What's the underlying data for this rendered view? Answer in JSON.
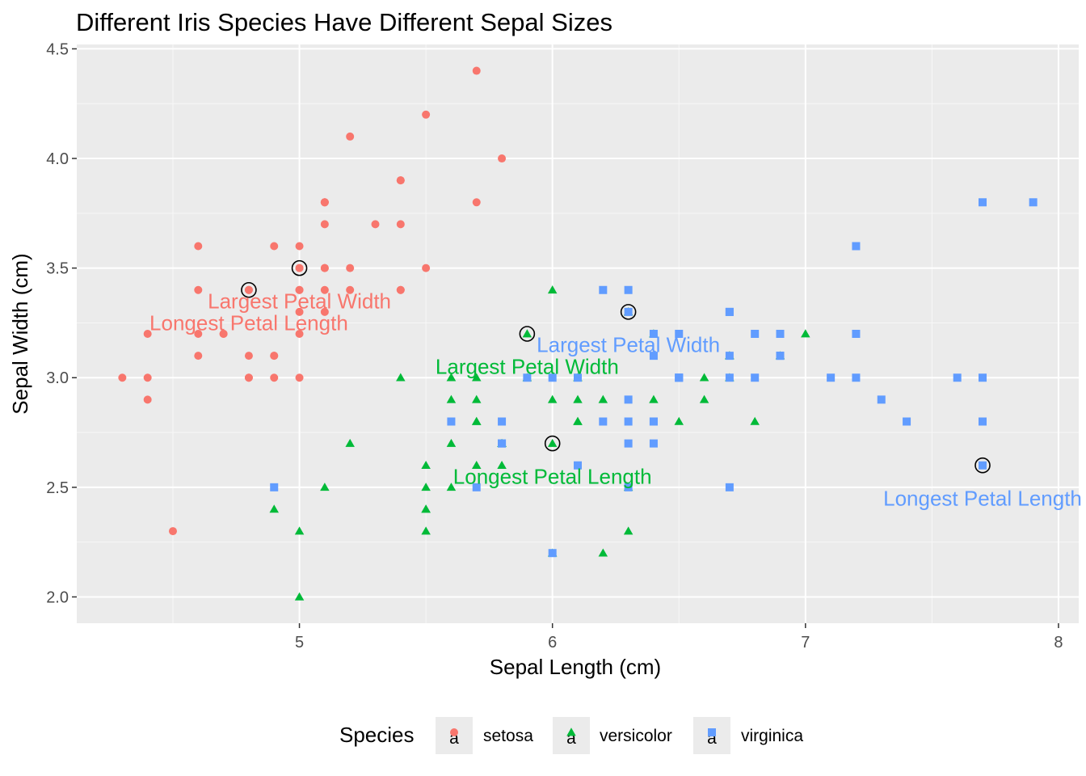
{
  "chart_data": {
    "type": "scatter",
    "title": "Different Iris Species Have Different Sepal Sizes",
    "xlabel": "Sepal Length (cm)",
    "ylabel": "Sepal Width (cm)",
    "xlim": [
      4.12,
      8.08
    ],
    "ylim": [
      1.88,
      4.52
    ],
    "x_ticks": [
      5,
      6,
      7,
      8
    ],
    "x_tick_labels": [
      "5",
      "6",
      "7",
      "8"
    ],
    "y_ticks": [
      2.0,
      2.5,
      3.0,
      3.5,
      4.0,
      4.5
    ],
    "y_tick_labels": [
      "2.0",
      "2.5",
      "3.0",
      "3.5",
      "4.0",
      "4.5"
    ],
    "grid": true,
    "legend": {
      "title": "Species",
      "position": "bottom",
      "entries": [
        {
          "label": "setosa",
          "color": "#F8766D",
          "shape": "circle"
        },
        {
          "label": "versicolor",
          "color": "#00BA38",
          "shape": "triangle"
        },
        {
          "label": "virginica",
          "color": "#619CFF",
          "shape": "square"
        }
      ]
    },
    "series": [
      {
        "name": "setosa",
        "color": "#F8766D",
        "shape": "circle",
        "x": [
          5.1,
          4.9,
          4.7,
          4.6,
          5.0,
          5.4,
          4.6,
          5.0,
          4.4,
          4.9,
          5.4,
          4.8,
          4.8,
          4.3,
          5.8,
          5.7,
          5.4,
          5.1,
          5.7,
          5.1,
          5.4,
          5.1,
          4.6,
          5.1,
          4.8,
          5.0,
          5.0,
          5.2,
          5.2,
          4.7,
          4.8,
          5.4,
          5.2,
          5.5,
          4.9,
          5.0,
          5.5,
          4.9,
          4.4,
          5.1,
          5.0,
          4.5,
          4.4,
          5.0,
          5.1,
          4.8,
          5.1,
          4.6,
          5.3,
          5.0
        ],
        "y": [
          3.5,
          3.0,
          3.2,
          3.1,
          3.6,
          3.9,
          3.4,
          3.4,
          2.9,
          3.1,
          3.7,
          3.4,
          3.0,
          3.0,
          4.0,
          4.4,
          3.9,
          3.5,
          3.8,
          3.8,
          3.4,
          3.7,
          3.6,
          3.3,
          3.4,
          3.0,
          3.4,
          3.5,
          3.4,
          3.2,
          3.1,
          3.4,
          4.1,
          4.2,
          3.1,
          3.2,
          3.5,
          3.6,
          3.0,
          3.4,
          3.5,
          2.3,
          3.2,
          3.5,
          3.8,
          3.0,
          3.8,
          3.2,
          3.7,
          3.3
        ]
      },
      {
        "name": "versicolor",
        "color": "#00BA38",
        "shape": "triangle",
        "x": [
          7.0,
          6.4,
          6.9,
          5.5,
          6.5,
          5.7,
          6.3,
          4.9,
          6.6,
          5.2,
          5.0,
          5.9,
          6.0,
          6.1,
          5.6,
          6.7,
          5.6,
          5.8,
          6.2,
          5.6,
          5.9,
          6.1,
          6.3,
          6.1,
          6.4,
          6.6,
          6.8,
          6.7,
          6.0,
          5.7,
          5.5,
          5.5,
          5.8,
          6.0,
          5.4,
          6.0,
          6.7,
          6.3,
          5.6,
          5.5,
          5.5,
          6.1,
          5.8,
          5.0,
          5.6,
          5.7,
          5.7,
          6.2,
          5.1,
          5.7
        ],
        "y": [
          3.2,
          3.2,
          3.1,
          2.3,
          2.8,
          2.8,
          3.3,
          2.4,
          2.9,
          2.7,
          2.0,
          3.0,
          2.2,
          2.9,
          2.9,
          3.1,
          3.0,
          2.7,
          2.2,
          2.5,
          3.2,
          2.8,
          2.5,
          2.8,
          2.9,
          3.0,
          2.8,
          3.0,
          2.9,
          2.6,
          2.4,
          2.4,
          2.7,
          2.7,
          3.0,
          3.4,
          3.1,
          2.3,
          3.0,
          2.5,
          2.6,
          3.0,
          2.6,
          2.3,
          2.7,
          3.0,
          2.9,
          2.9,
          2.5,
          2.8
        ]
      },
      {
        "name": "virginica",
        "color": "#619CFF",
        "shape": "square",
        "x": [
          6.3,
          5.8,
          7.1,
          6.3,
          6.5,
          7.6,
          4.9,
          7.3,
          6.7,
          7.2,
          6.5,
          6.4,
          6.8,
          5.7,
          5.8,
          6.4,
          6.5,
          7.7,
          7.7,
          6.0,
          6.9,
          5.6,
          7.7,
          6.3,
          6.7,
          7.2,
          6.2,
          6.1,
          6.4,
          7.2,
          7.4,
          7.9,
          6.4,
          6.3,
          6.1,
          7.7,
          6.3,
          6.4,
          6.0,
          6.9,
          6.7,
          6.9,
          5.8,
          6.8,
          6.7,
          6.7,
          6.3,
          6.5,
          6.2,
          5.9
        ],
        "y": [
          3.3,
          2.7,
          3.0,
          2.9,
          3.0,
          3.0,
          2.5,
          2.9,
          2.5,
          3.6,
          3.2,
          2.7,
          3.0,
          2.5,
          2.8,
          3.2,
          3.0,
          3.8,
          2.6,
          2.2,
          3.2,
          2.8,
          2.8,
          2.7,
          3.3,
          3.2,
          2.8,
          3.0,
          2.8,
          3.0,
          2.8,
          3.8,
          2.8,
          2.8,
          2.6,
          3.0,
          3.4,
          3.1,
          3.0,
          3.1,
          3.1,
          3.1,
          2.7,
          3.2,
          3.3,
          3.0,
          2.5,
          3.0,
          3.4,
          3.0
        ]
      }
    ],
    "highlighted_points": [
      {
        "species": "setosa",
        "x": 5.0,
        "y": 3.5
      },
      {
        "species": "setosa",
        "x": 4.8,
        "y": 3.4
      },
      {
        "species": "versicolor",
        "x": 5.9,
        "y": 3.2
      },
      {
        "species": "versicolor",
        "x": 6.0,
        "y": 2.7
      },
      {
        "species": "virginica",
        "x": 6.3,
        "y": 3.3
      },
      {
        "species": "virginica",
        "x": 7.7,
        "y": 2.6
      }
    ],
    "annotations": [
      {
        "text": "Largest Petal Width",
        "species": "setosa",
        "color": "#F8766D",
        "x": 5.0,
        "y": 3.35
      },
      {
        "text": "Longest Petal Length",
        "species": "setosa",
        "color": "#F8766D",
        "x": 4.8,
        "y": 3.25
      },
      {
        "text": "Largest Petal Width",
        "species": "virginica",
        "color": "#619CFF",
        "x": 6.3,
        "y": 3.15
      },
      {
        "text": "Largest Petal Width",
        "species": "versicolor",
        "color": "#00BA38",
        "x": 5.9,
        "y": 3.05
      },
      {
        "text": "Longest Petal Length",
        "species": "versicolor",
        "color": "#00BA38",
        "x": 6.0,
        "y": 2.55
      },
      {
        "text": "Longest Petal Length",
        "species": "virginica",
        "color": "#619CFF",
        "x": 7.7,
        "y": 2.45
      }
    ]
  }
}
